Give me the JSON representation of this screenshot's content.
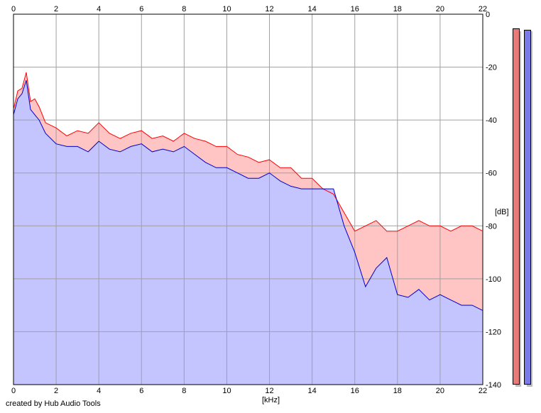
{
  "credit": "created by Hub Audio Tools",
  "chart_data": {
    "type": "area",
    "xlabel": "[kHz]",
    "ylabel": "[dB]",
    "xlim": [
      0,
      22
    ],
    "ylim": [
      -140,
      0
    ],
    "x_ticks": [
      0,
      2,
      4,
      6,
      8,
      10,
      12,
      14,
      16,
      18,
      20,
      22
    ],
    "y_ticks": [
      0,
      -20,
      -40,
      -60,
      -80,
      -100,
      -120,
      -140
    ],
    "x_tick_labels": [
      "0",
      "2",
      "4",
      "6",
      "8",
      "10",
      "12",
      "14",
      "16",
      "18",
      "20",
      "22"
    ],
    "y_tick_labels": [
      "0",
      "-20",
      "-40",
      "-60",
      "-80",
      "-100",
      "-120",
      "-140"
    ],
    "grid": true,
    "series": [
      {
        "color": "#ff0000",
        "fill": "#ffc4c4",
        "x": [
          0,
          0.2,
          0.4,
          0.6,
          0.8,
          1,
          1.2,
          1.5,
          2,
          2.5,
          3,
          3.5,
          4,
          4.5,
          5,
          5.5,
          6,
          6.5,
          7,
          7.5,
          8,
          8.5,
          9,
          9.5,
          10,
          10.5,
          11,
          11.5,
          12,
          12.5,
          13,
          13.5,
          14,
          14.5,
          15,
          15.5,
          16,
          16.5,
          17,
          17.5,
          18,
          18.5,
          19,
          19.5,
          20,
          20.5,
          21,
          21.5,
          22
        ],
        "values": [
          -36,
          -29,
          -28,
          -22,
          -33,
          -32,
          -35,
          -41,
          -43,
          -46,
          -44,
          -45,
          -41,
          -45,
          -47,
          -45,
          -44,
          -47,
          -46,
          -48,
          -45,
          -47,
          -48,
          -50,
          -50,
          -53,
          -54,
          -56,
          -55,
          -58,
          -58,
          -62,
          -62,
          -66,
          -68,
          -75,
          -82,
          -80,
          -78,
          -82,
          -82,
          -80,
          -78,
          -80,
          -80,
          -82,
          -80,
          -80,
          -82
        ]
      },
      {
        "color": "#0000cc",
        "fill": "#c4c4ff",
        "x": [
          0,
          0.2,
          0.4,
          0.6,
          0.8,
          1,
          1.2,
          1.5,
          2,
          2.5,
          3,
          3.5,
          4,
          4.5,
          5,
          5.5,
          6,
          6.5,
          7,
          7.5,
          8,
          8.5,
          9,
          9.5,
          10,
          10.5,
          11,
          11.5,
          12,
          12.5,
          13,
          13.5,
          14,
          14.5,
          15,
          15.5,
          16,
          16.5,
          17,
          17.5,
          18,
          18.5,
          19,
          19.5,
          20,
          20.5,
          21,
          21.5,
          22
        ],
        "values": [
          -38,
          -32,
          -30,
          -25,
          -36,
          -38,
          -40,
          -45,
          -49,
          -50,
          -50,
          -52,
          -48,
          -51,
          -52,
          -50,
          -49,
          -52,
          -51,
          -52,
          -50,
          -53,
          -56,
          -58,
          -58,
          -60,
          -62,
          -62,
          -60,
          -63,
          -65,
          -66,
          -66,
          -66,
          -66,
          -80,
          -90,
          -103,
          -96,
          -92,
          -106,
          -107,
          -104,
          -108,
          -106,
          -108,
          -110,
          -110,
          -112
        ]
      }
    ]
  }
}
